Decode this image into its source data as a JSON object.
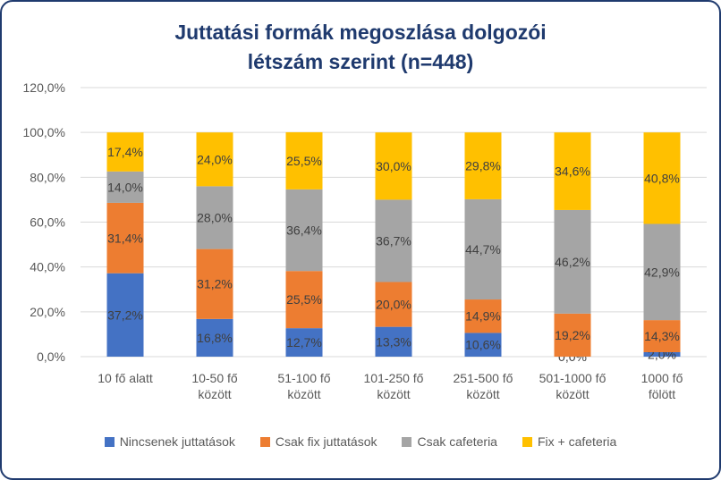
{
  "chart_data": {
    "type": "bar",
    "stacked": true,
    "title_line1": "Juttatási formák megoszlása dolgozói",
    "title_line2": "létszám szerint (n=448)",
    "categories": [
      [
        "10 fő alatt"
      ],
      [
        "10-50 fő",
        "között"
      ],
      [
        "51-100 fő",
        "között"
      ],
      [
        "101-250 fő",
        "között"
      ],
      [
        "251-500 fő",
        "között"
      ],
      [
        "501-1000 fő",
        "között"
      ],
      [
        "1000 fő",
        "fölött"
      ]
    ],
    "series": [
      {
        "name": "Nincsenek juttatások",
        "color": "#4472c4",
        "values": [
          37.2,
          16.8,
          12.7,
          13.3,
          10.6,
          0.0,
          2.0
        ],
        "labels": [
          "37,2%",
          "16,8%",
          "12,7%",
          "13,3%",
          "10,6%",
          "0,0%",
          "2,0%"
        ]
      },
      {
        "name": "Csak fix juttatások",
        "color": "#ed7d31",
        "values": [
          31.4,
          31.2,
          25.5,
          20.0,
          14.9,
          19.2,
          14.3
        ],
        "labels": [
          "31,4%",
          "31,2%",
          "25,5%",
          "20,0%",
          "14,9%",
          "19,2%",
          "14,3%"
        ]
      },
      {
        "name": "Csak cafeteria",
        "color": "#a5a5a5",
        "values": [
          14.0,
          28.0,
          36.4,
          36.7,
          44.7,
          46.2,
          42.9
        ],
        "labels": [
          "14,0%",
          "28,0%",
          "36,4%",
          "36,7%",
          "44,7%",
          "46,2%",
          "42,9%"
        ]
      },
      {
        "name": "Fix + cafeteria",
        "color": "#ffc000",
        "values": [
          17.4,
          24.0,
          25.5,
          30.0,
          29.8,
          34.6,
          40.8
        ],
        "labels": [
          "17,4%",
          "24,0%",
          "25,5%",
          "30,0%",
          "29,8%",
          "34,6%",
          "40,8%"
        ]
      }
    ],
    "yticks": [
      "0,0%",
      "20,0%",
      "40,0%",
      "60,0%",
      "80,0%",
      "100,0%",
      "120,0%"
    ],
    "ylim": [
      0,
      120
    ],
    "grid": true,
    "legend_position": "bottom"
  }
}
